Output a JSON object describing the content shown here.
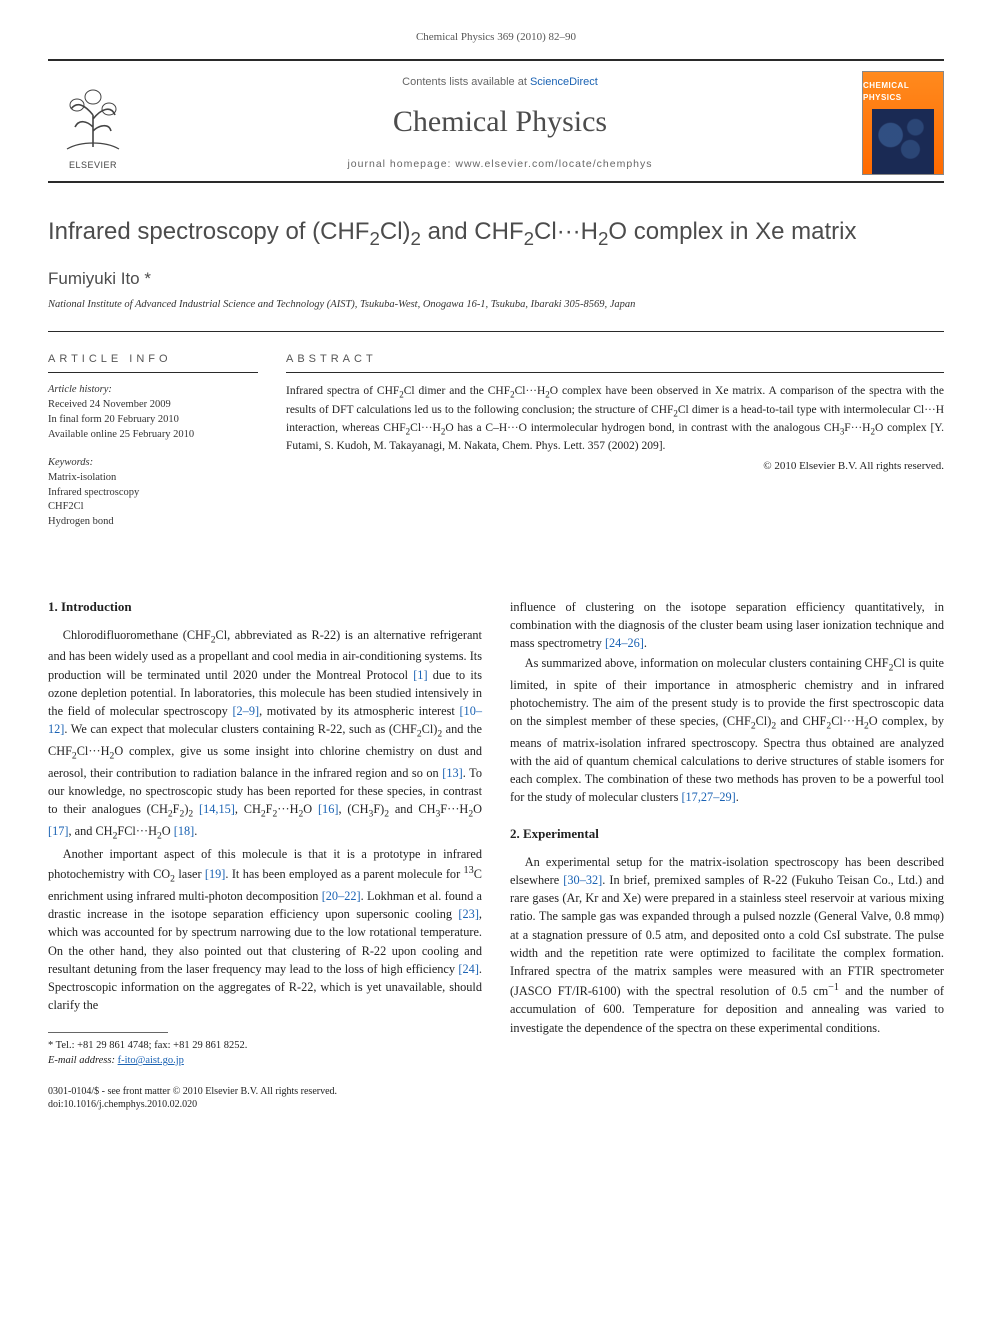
{
  "page_header": "Chemical Physics 369 (2010) 82–90",
  "masthead": {
    "contents_prefix": "Contents lists available at ",
    "contents_link": "ScienceDirect",
    "journal_title": "Chemical Physics",
    "homepage_label": "journal homepage: www.elsevier.com/locate/chemphys",
    "publisher_label": "ELSEVIER",
    "cover_label": "CHEMICAL PHYSICS"
  },
  "article": {
    "title_html": "Infrared spectroscopy of (CHF<sub>2</sub>Cl)<sub>2</sub> and CHF<sub>2</sub>Cl···H<sub>2</sub>O complex in Xe matrix",
    "author": "Fumiyuki Ito *",
    "affiliation": "National Institute of Advanced Industrial Science and Technology (AIST), Tsukuba-West, Onogawa 16-1, Tsukuba, Ibaraki 305-8569, Japan"
  },
  "info": {
    "heading": "ARTICLE INFO",
    "history_label": "Article history:",
    "history": [
      "Received 24 November 2009",
      "In final form 20 February 2010",
      "Available online 25 February 2010"
    ],
    "keywords_label": "Keywords:",
    "keywords": [
      "Matrix-isolation",
      "Infrared spectroscopy",
      "CHF2Cl",
      "Hydrogen bond"
    ]
  },
  "abstract": {
    "heading": "ABSTRACT",
    "text_html": "Infrared spectra of CHF<sub>2</sub>Cl dimer and the CHF<sub>2</sub>Cl···H<sub>2</sub>O complex have been observed in Xe matrix. A comparison of the spectra with the results of DFT calculations led us to the following conclusion; the structure of CHF<sub>2</sub>Cl dimer is a head-to-tail type with intermolecular Cl···H interaction, whereas CHF<sub>2</sub>Cl···H<sub>2</sub>O has a C–H···O intermolecular hydrogen bond, in contrast with the analogous CH<sub>3</sub>F···H<sub>2</sub>O complex [Y. Futami, S. Kudoh, M. Takayanagi, M. Nakata, Chem. Phys. Lett. 357 (2002) 209].",
    "copyright": "© 2010 Elsevier B.V. All rights reserved."
  },
  "sections": {
    "intro_heading": "1. Introduction",
    "intro_p1_html": "Chlorodifluoromethane (CHF<sub>2</sub>Cl, abbreviated as R-22) is an alternative refrigerant and has been widely used as a propellant and cool media in air-conditioning systems. Its production will be terminated until 2020 under the Montreal Protocol <span class=\"ref\">[1]</span> due to its ozone depletion potential. In laboratories, this molecule has been studied intensively in the field of molecular spectroscopy <span class=\"ref\">[2–9]</span>, motivated by its atmospheric interest <span class=\"ref\">[10–12]</span>. We can expect that molecular clusters containing R-22, such as (CHF<sub>2</sub>Cl)<sub>2</sub> and the CHF<sub>2</sub>Cl···H<sub>2</sub>O complex, give us some insight into chlorine chemistry on dust and aerosol, their contribution to radiation balance in the infrared region and so on <span class=\"ref\">[13]</span>. To our knowledge, no spectroscopic study has been reported for these species, in contrast to their analogues (CH<sub>2</sub>F<sub>2</sub>)<sub>2</sub> <span class=\"ref\">[14,15]</span>, CH<sub>2</sub>F<sub>2</sub>···H<sub>2</sub>O <span class=\"ref\">[16]</span>, (CH<sub>3</sub>F)<sub>2</sub> and CH<sub>3</sub>F···H<sub>2</sub>O <span class=\"ref\">[17]</span>, and CH<sub>2</sub>FCl···H<sub>2</sub>O <span class=\"ref\">[18]</span>.",
    "intro_p2_html": "Another important aspect of this molecule is that it is a prototype in infrared photochemistry with CO<sub>2</sub> laser <span class=\"ref\">[19]</span>. It has been employed as a parent molecule for <sup>13</sup>C enrichment using infrared multi-photon decomposition <span class=\"ref\">[20–22]</span>. Lokhman et al. found a drastic increase in the isotope separation efficiency upon supersonic cooling <span class=\"ref\">[23]</span>, which was accounted for by spectrum narrowing due to the low rotational temperature. On the other hand, they also pointed out that clustering of R-22 upon cooling and resultant detuning from the laser frequency may lead to the loss of high efficiency <span class=\"ref\">[24]</span>. Spectroscopic information on the aggregates of R-22, which is yet unavailable, should clarify the",
    "intro_p2b_html": "influence of clustering on the isotope separation efficiency quantitatively, in combination with the diagnosis of the cluster beam using laser ionization technique and mass spectrometry <span class=\"ref\">[24–26]</span>.",
    "intro_p3_html": "As summarized above, information on molecular clusters containing CHF<sub>2</sub>Cl is quite limited, in spite of their importance in atmospheric chemistry and in infrared photochemistry. The aim of the present study is to provide the first spectroscopic data on the simplest member of these species, (CHF<sub>2</sub>Cl)<sub>2</sub> and CHF<sub>2</sub>Cl···H<sub>2</sub>O complex, by means of matrix-isolation infrared spectroscopy. Spectra thus obtained are analyzed with the aid of quantum chemical calculations to derive structures of stable isomers for each complex. The combination of these two methods has proven to be a powerful tool for the study of molecular clusters <span class=\"ref\">[17,27–29]</span>.",
    "exp_heading": "2. Experimental",
    "exp_p1_html": "An experimental setup for the matrix-isolation spectroscopy has been described elsewhere <span class=\"ref\">[30–32]</span>. In brief, premixed samples of R-22 (Fukuho Teisan Co., Ltd.) and rare gases (Ar, Kr and Xe) were prepared in a stainless steel reservoir at various mixing ratio. The sample gas was expanded through a pulsed nozzle (General Valve, 0.8 mmφ) at a stagnation pressure of 0.5 atm, and deposited onto a cold CsI substrate. The pulse width and the repetition rate were optimized to facilitate the complex formation. Infrared spectra of the matrix samples were measured with an FTIR spectrometer (JASCO FT/IR-6100) with the spectral resolution of 0.5 cm<sup>−1</sup> and the number of accumulation of 600. Temperature for deposition and annealing was varied to investigate the dependence of the spectra on these experimental conditions."
  },
  "footnote": {
    "tel": "* Tel.: +81 29 861 4748; fax: +81 29 861 8252.",
    "email_label": "E-mail address:",
    "email": "f-ito@aist.go.jp"
  },
  "footer": {
    "line1": "0301-0104/$ - see front matter © 2010 Elsevier B.V. All rights reserved.",
    "line2": "doi:10.1016/j.chemphys.2010.02.020"
  },
  "colors": {
    "text": "#222222",
    "heading": "#4c4c4c",
    "link": "#1a62b3",
    "rule": "#2a2a2a",
    "cover_bg_top": "#ff8a1e",
    "cover_bg_bot": "#ff6a00",
    "cover_inner": "#1a2a54"
  }
}
